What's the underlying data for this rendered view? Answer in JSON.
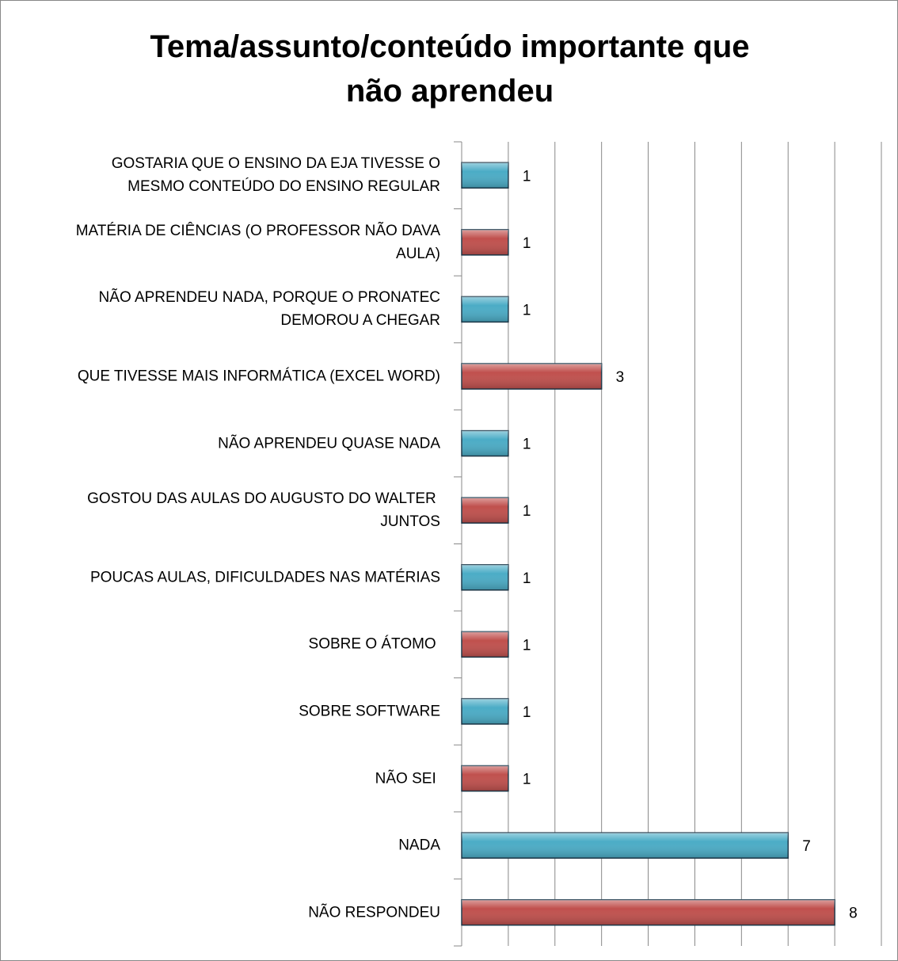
{
  "chart_data": {
    "type": "barh",
    "title": "Tema/assunto/conteúdo importante que\nnão aprendeu",
    "categories": [
      "GOSTARIA QUE O ENSINO DA EJA TIVESSE O\nMESMO CONTEÚDO DO ENSINO REGULAR",
      "MATÉRIA DE CIÊNCIAS (O PROFESSOR NÃO DAVA\nAULA)",
      "NÃO APRENDEU NADA, PORQUE O PRONATEC\nDEMOROU A CHEGAR",
      "QUE TIVESSE MAIS INFORMÁTICA (EXCEL WORD)",
      "NÃO APRENDEU QUASE NADA",
      "GOSTOU DAS AULAS DO AUGUSTO DO WALTER \nJUNTOS",
      "POUCAS AULAS, DIFICULDADES NAS MATÉRIAS",
      "SOBRE O ÁTOMO ",
      "SOBRE SOFTWARE",
      "NÃO SEI ",
      "NADA",
      "NÃO RESPONDEU"
    ],
    "values": [
      1,
      1,
      1,
      3,
      1,
      1,
      1,
      1,
      1,
      1,
      7,
      8
    ],
    "colors": [
      "#4bacc6",
      "#c0504d",
      "#4bacc6",
      "#c0504d",
      "#4bacc6",
      "#c0504d",
      "#4bacc6",
      "#c0504d",
      "#4bacc6",
      "#c0504d",
      "#4bacc6",
      "#c0504d"
    ],
    "xlim": [
      0,
      9
    ],
    "xticks": [
      0,
      1,
      2,
      3,
      4,
      5,
      6,
      7,
      8,
      9
    ],
    "grid": true
  }
}
